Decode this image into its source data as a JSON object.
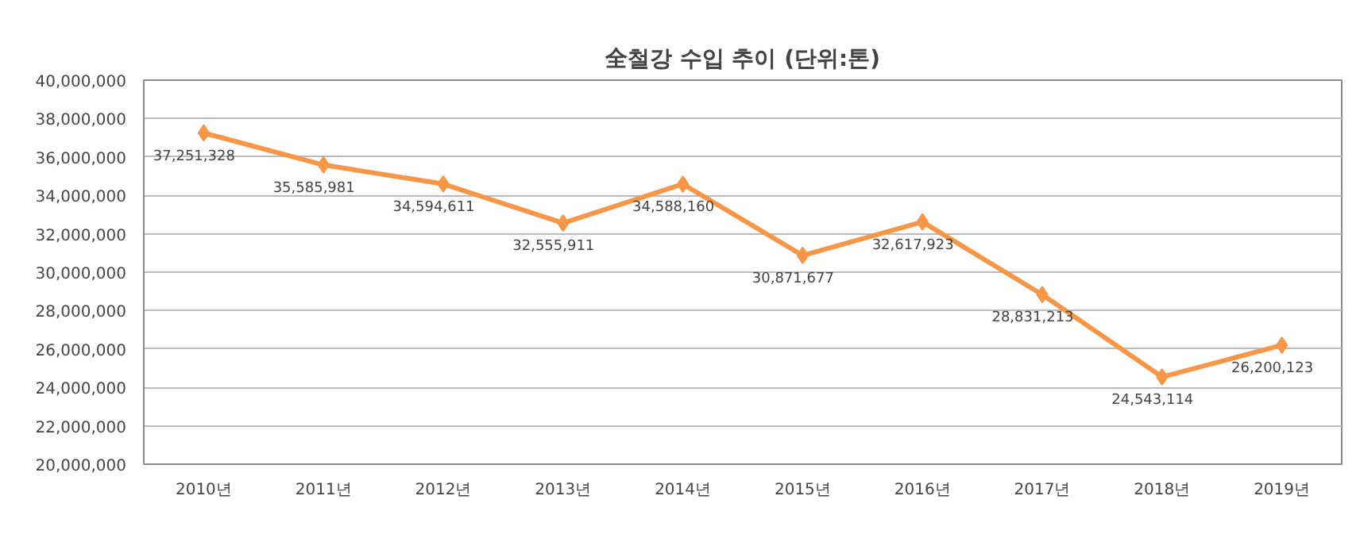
{
  "chart_data": {
    "type": "line",
    "title": "全철강 수입 추이 (단위:톤)",
    "categories": [
      "2010년",
      "2011년",
      "2012년",
      "2013년",
      "2014년",
      "2015년",
      "2016년",
      "2017년",
      "2018년",
      "2019년"
    ],
    "series": [
      {
        "color": "#f79646",
        "values": [
          37251328,
          35585981,
          34594611,
          32555911,
          34588160,
          30871677,
          32617923,
          28831213,
          24543114,
          26200123
        ],
        "value_labels": [
          "37,251,328",
          "35,585,981",
          "34,594,611",
          "32,555,911",
          "34,588,160",
          "30,871,677",
          "32,617,923",
          "28,831,213",
          "24,543,114",
          "26,200,123"
        ]
      }
    ],
    "ylim": [
      20000000,
      40000000
    ],
    "yticks": [
      {
        "value": 20000000,
        "label": "20,000,000"
      },
      {
        "value": 22000000,
        "label": "22,000,000"
      },
      {
        "value": 24000000,
        "label": "24,000,000"
      },
      {
        "value": 26000000,
        "label": "26,000,000"
      },
      {
        "value": 28000000,
        "label": "28,000,000"
      },
      {
        "value": 30000000,
        "label": "30,000,000"
      },
      {
        "value": 32000000,
        "label": "32,000,000"
      },
      {
        "value": 34000000,
        "label": "34,000,000"
      },
      {
        "value": 36000000,
        "label": "36,000,000"
      },
      {
        "value": 38000000,
        "label": "38,000,000"
      },
      {
        "value": 40000000,
        "label": "40,000,000"
      }
    ],
    "grid": "y",
    "marker": "diamond",
    "line_style": "solid"
  }
}
